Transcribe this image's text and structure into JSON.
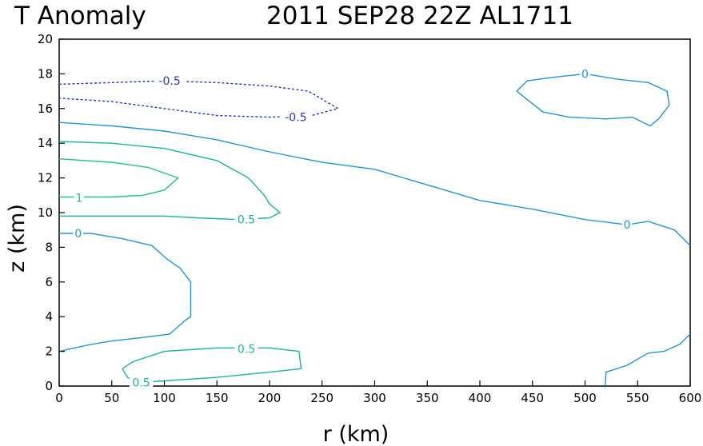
{
  "chart_data": {
    "type": "contour",
    "title_left": "T Anomaly",
    "title_right": "2011 SEP28 22Z   AL1711",
    "xlabel": "r (km)",
    "ylabel": "z (km)",
    "xlim": [
      0,
      600
    ],
    "ylim": [
      0,
      20
    ],
    "xticks": [
      0,
      50,
      100,
      150,
      200,
      250,
      300,
      350,
      400,
      450,
      500,
      550,
      600
    ],
    "yticks": [
      0,
      2,
      4,
      6,
      8,
      10,
      12,
      14,
      16,
      18,
      20
    ],
    "grid": false,
    "contours": [
      {
        "level": "-0.5",
        "style": "dashed",
        "color": "#2238c8",
        "points": [
          [
            0,
            17.4
          ],
          [
            50,
            17.5
          ],
          [
            100,
            17.6
          ],
          [
            150,
            17.5
          ],
          [
            200,
            17.3
          ],
          [
            237,
            17.0
          ],
          [
            265,
            16.0
          ],
          [
            240,
            15.6
          ],
          [
            200,
            15.5
          ],
          [
            150,
            15.6
          ],
          [
            100,
            16.0
          ],
          [
            50,
            16.4
          ],
          [
            0,
            16.6
          ]
        ],
        "labels": [
          {
            "text": "-0.5",
            "x": 105,
            "y": 17.6
          },
          {
            "text": "-0.5",
            "x": 225,
            "y": 15.5
          }
        ]
      },
      {
        "level": "0",
        "style": "solid",
        "color": "#1e96dc",
        "points": [
          [
            0,
            15.2
          ],
          [
            50,
            15.0
          ],
          [
            100,
            14.7
          ],
          [
            150,
            14.2
          ],
          [
            200,
            13.5
          ],
          [
            250,
            12.9
          ],
          [
            300,
            12.5
          ],
          [
            350,
            11.6
          ],
          [
            400,
            10.7
          ],
          [
            450,
            10.2
          ],
          [
            500,
            9.6
          ],
          [
            540,
            9.3
          ],
          [
            560,
            9.5
          ],
          [
            585,
            9.0
          ],
          [
            600,
            8.1
          ]
        ],
        "labels": [
          {
            "text": "0",
            "x": 540,
            "y": 9.3
          }
        ]
      },
      {
        "level": "0",
        "style": "solid",
        "color": "#1e96dc",
        "points": [
          [
            0,
            8.8
          ],
          [
            30,
            8.8
          ],
          [
            60,
            8.5
          ],
          [
            88,
            8.1
          ],
          [
            103,
            7.3
          ],
          [
            115,
            6.8
          ],
          [
            125,
            6.0
          ],
          [
            125,
            4.0
          ],
          [
            120,
            3.8
          ],
          [
            105,
            3.0
          ],
          [
            80,
            2.8
          ],
          [
            50,
            2.6
          ],
          [
            30,
            2.4
          ],
          [
            0,
            2.0
          ]
        ],
        "labels": [
          {
            "text": "0",
            "x": 18,
            "y": 8.8
          }
        ]
      },
      {
        "level": "0",
        "style": "solid",
        "color": "#1e96dc",
        "points": [
          [
            435,
            17.0
          ],
          [
            445,
            17.6
          ],
          [
            470,
            17.8
          ],
          [
            500,
            18.0
          ],
          [
            530,
            17.7
          ],
          [
            560,
            17.5
          ],
          [
            578,
            17.0
          ],
          [
            580,
            16.2
          ],
          [
            570,
            15.4
          ],
          [
            562,
            15.0
          ],
          [
            545,
            15.5
          ],
          [
            520,
            15.4
          ],
          [
            485,
            15.5
          ],
          [
            460,
            15.8
          ],
          [
            435,
            17.0
          ]
        ],
        "labels": [
          {
            "text": "0",
            "x": 500,
            "y": 18.0
          }
        ]
      },
      {
        "level": "0",
        "style": "solid",
        "color": "#1e96dc",
        "points": [
          [
            519,
            0.0
          ],
          [
            520,
            0.8
          ],
          [
            540,
            1.2
          ],
          [
            560,
            1.9
          ],
          [
            575,
            2.0
          ],
          [
            590,
            2.4
          ],
          [
            600,
            3.0
          ]
        ],
        "labels": []
      },
      {
        "level": "0.5",
        "style": "solid",
        "color": "#18b4a6",
        "points": [
          [
            0,
            14.1
          ],
          [
            50,
            14.0
          ],
          [
            100,
            13.7
          ],
          [
            150,
            13.0
          ],
          [
            180,
            12.0
          ],
          [
            195,
            11.0
          ],
          [
            200,
            10.5
          ],
          [
            210,
            10.0
          ],
          [
            200,
            9.7
          ],
          [
            170,
            9.6
          ],
          [
            130,
            9.7
          ],
          [
            100,
            9.8
          ],
          [
            0,
            9.8
          ]
        ],
        "labels": [
          {
            "text": "0.5",
            "x": 178,
            "y": 9.6
          }
        ]
      },
      {
        "level": "0.5",
        "style": "solid",
        "color": "#18b4a6",
        "points": [
          [
            60,
            1.0
          ],
          [
            70,
            1.4
          ],
          [
            100,
            2.0
          ],
          [
            150,
            2.2
          ],
          [
            200,
            2.2
          ],
          [
            228,
            2.0
          ],
          [
            230,
            1.0
          ],
          [
            200,
            0.8
          ],
          [
            150,
            0.5
          ],
          [
            100,
            0.3
          ],
          [
            75,
            0.2
          ],
          [
            65,
            0.5
          ],
          [
            60,
            1.0
          ]
        ],
        "labels": [
          {
            "text": "0.5",
            "x": 178,
            "y": 2.15
          },
          {
            "text": "0.5",
            "x": 78,
            "y": 0.2
          }
        ]
      },
      {
        "level": "1",
        "style": "solid",
        "color": "#20c084",
        "points": [
          [
            0,
            13.1
          ],
          [
            50,
            12.9
          ],
          [
            85,
            12.6
          ],
          [
            113,
            12.0
          ],
          [
            100,
            11.3
          ],
          [
            80,
            11.0
          ],
          [
            50,
            10.9
          ],
          [
            0,
            10.9
          ]
        ],
        "labels": [
          {
            "text": "1",
            "x": 19,
            "y": 10.85
          }
        ]
      }
    ]
  }
}
